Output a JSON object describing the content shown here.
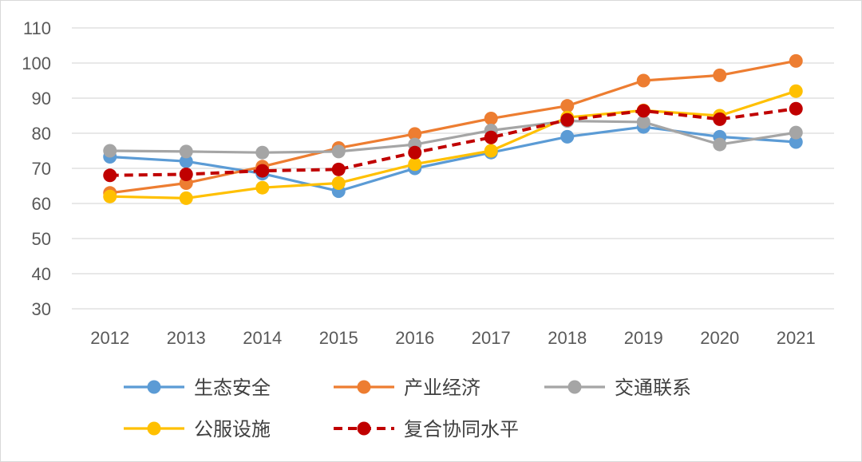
{
  "chart_data": {
    "type": "line",
    "title": "",
    "xlabel": "",
    "ylabel": "",
    "categories": [
      "2012",
      "2013",
      "2014",
      "2015",
      "2016",
      "2017",
      "2018",
      "2019",
      "2020",
      "2021"
    ],
    "ylim": [
      30,
      110
    ],
    "yticks": [
      30,
      40,
      50,
      60,
      70,
      80,
      90,
      100,
      110
    ],
    "grid": true,
    "legend_position": "bottom",
    "series": [
      {
        "name": "生态安全",
        "color": "#5b9bd5",
        "dashed": false,
        "values": [
          73.3,
          72.0,
          68.5,
          63.5,
          70.0,
          74.5,
          79.0,
          81.8,
          79.0,
          77.5
        ]
      },
      {
        "name": "产业经济",
        "color": "#ed7d31",
        "dashed": false,
        "values": [
          63.0,
          65.8,
          70.5,
          75.8,
          79.8,
          84.2,
          87.8,
          95.0,
          96.5,
          100.6
        ]
      },
      {
        "name": "交通联系",
        "color": "#a5a5a5",
        "dashed": false,
        "values": [
          75.0,
          74.8,
          74.5,
          74.8,
          76.8,
          80.8,
          83.5,
          83.2,
          76.8,
          80.2
        ]
      },
      {
        "name": "公服设施",
        "color": "#ffc000",
        "dashed": false,
        "values": [
          62.0,
          61.5,
          64.5,
          65.8,
          71.2,
          75.0,
          84.5,
          86.5,
          85.0,
          92.0
        ]
      },
      {
        "name": "复合协同水平",
        "color": "#c00000",
        "dashed": true,
        "values": [
          68.0,
          68.3,
          69.3,
          69.7,
          74.5,
          78.8,
          83.8,
          86.4,
          84.0,
          87.0
        ]
      }
    ]
  }
}
